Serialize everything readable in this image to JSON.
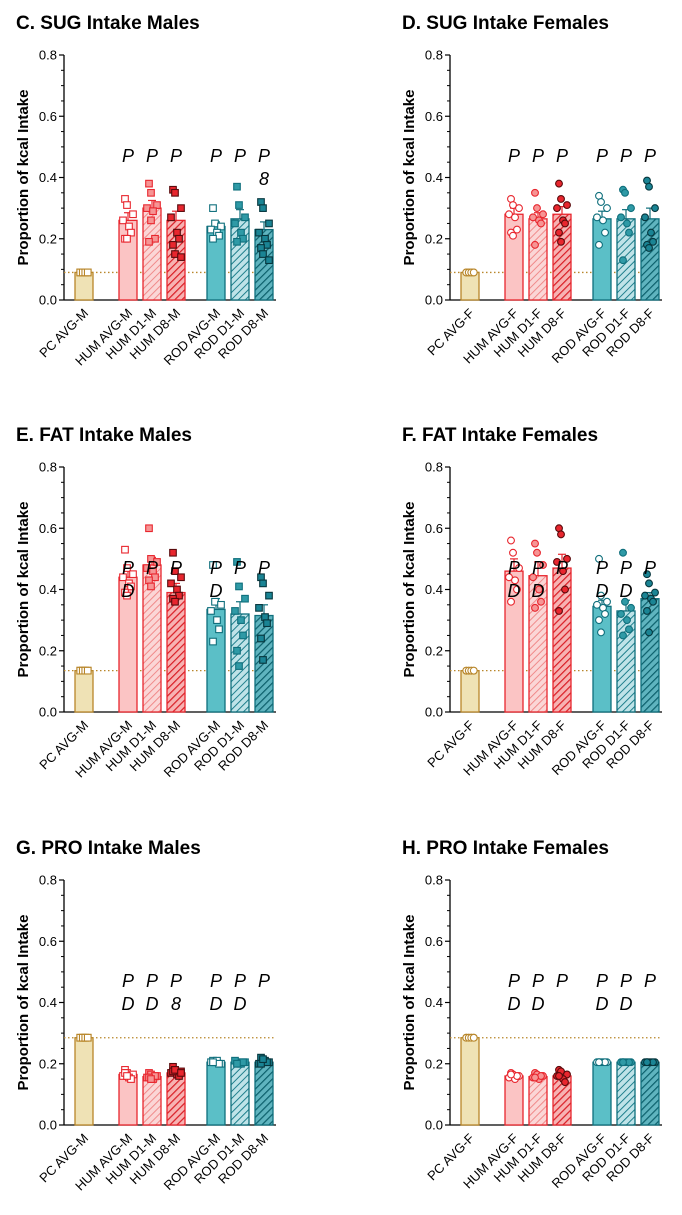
{
  "chart_data": [
    {
      "type": "bar",
      "title": "C. SUG Intake Males",
      "ylabel": "Proportion of kcal Intake",
      "ylim": [
        0,
        0.8
      ],
      "yticks": [
        "0.0",
        "0.2",
        "0.4",
        "0.6",
        "0.8"
      ],
      "categories": [
        "PC AVG-M",
        "HUM AVG-M",
        "HUM D1-M",
        "HUM D8-M",
        "ROD AVG-M",
        "ROD D1-M",
        "ROD D8-M"
      ],
      "values": [
        0.09,
        0.26,
        0.3,
        0.26,
        0.24,
        0.265,
        0.23
      ],
      "errors": [
        0.005,
        0.025,
        0.025,
        0.03,
        0.015,
        0.03,
        0.025
      ],
      "points": [
        [
          0.09,
          0.09,
          0.09,
          0.09,
          0.09,
          0.09,
          0.09,
          0.09
        ],
        [
          0.33,
          0.31,
          0.28,
          0.26,
          0.24,
          0.22,
          0.2,
          0.2
        ],
        [
          0.38,
          0.35,
          0.31,
          0.3,
          0.29,
          0.2,
          0.19,
          0.26
        ],
        [
          0.36,
          0.35,
          0.3,
          0.27,
          0.22,
          0.2,
          0.18,
          0.15,
          0.14
        ],
        [
          0.3,
          0.25,
          0.24,
          0.23,
          0.22,
          0.21,
          0.2
        ],
        [
          0.37,
          0.31,
          0.27,
          0.25,
          0.22,
          0.2,
          0.19
        ],
        [
          0.32,
          0.3,
          0.25,
          0.22,
          0.2,
          0.18,
          0.17,
          0.15,
          0.13
        ]
      ],
      "reference_line": 0.09,
      "annotations": [
        [],
        [
          "P"
        ],
        [
          "P"
        ],
        [
          "P"
        ],
        [
          "P"
        ],
        [
          "P"
        ],
        [
          "P",
          "8"
        ]
      ]
    },
    {
      "type": "bar",
      "title": "D. SUG Intake Females",
      "ylabel": "Proportion of kcal Intake",
      "ylim": [
        0,
        0.8
      ],
      "yticks": [
        "0.0",
        "0.2",
        "0.4",
        "0.6",
        "0.8"
      ],
      "categories": [
        "PC AVG-F",
        "HUM AVG-F",
        "HUM D1-F",
        "HUM D8-F",
        "ROD AVG-F",
        "ROD D1-F",
        "ROD D8-F"
      ],
      "values": [
        0.09,
        0.28,
        0.265,
        0.28,
        0.265,
        0.265,
        0.265
      ],
      "errors": [
        0.005,
        0.02,
        0.02,
        0.025,
        0.025,
        0.03,
        0.035
      ],
      "points": [
        [
          0.09,
          0.09,
          0.09,
          0.09,
          0.09,
          0.09,
          0.09,
          0.09
        ],
        [
          0.33,
          0.31,
          0.3,
          0.28,
          0.27,
          0.23,
          0.22,
          0.21
        ],
        [
          0.35,
          0.3,
          0.28,
          0.27,
          0.26,
          0.25,
          0.18
        ],
        [
          0.38,
          0.33,
          0.31,
          0.3,
          0.26,
          0.25,
          0.22,
          0.19
        ],
        [
          0.34,
          0.32,
          0.3,
          0.27,
          0.26,
          0.22,
          0.18
        ],
        [
          0.36,
          0.35,
          0.3,
          0.27,
          0.25,
          0.22,
          0.13
        ],
        [
          0.39,
          0.37,
          0.3,
          0.27,
          0.22,
          0.19,
          0.18,
          0.17
        ]
      ],
      "reference_line": 0.09,
      "annotations": [
        [],
        [
          "P"
        ],
        [
          "P"
        ],
        [
          "P"
        ],
        [
          "P"
        ],
        [
          "P"
        ],
        [
          "P"
        ]
      ]
    },
    {
      "type": "bar",
      "title": "E. FAT Intake Males",
      "ylabel": "Proportion of kcal Intake",
      "ylim": [
        0,
        0.8
      ],
      "yticks": [
        "0.0",
        "0.2",
        "0.4",
        "0.6",
        "0.8"
      ],
      "categories": [
        "PC AVG-M",
        "HUM AVG-M",
        "HUM D1-M",
        "HUM D8-M",
        "ROD AVG-M",
        "ROD D1-M",
        "ROD D8-M"
      ],
      "values": [
        0.135,
        0.44,
        0.48,
        0.39,
        0.335,
        0.32,
        0.315
      ],
      "errors": [
        0.005,
        0.03,
        0.025,
        0.03,
        0.035,
        0.04,
        0.035
      ],
      "points": [
        [
          0.135,
          0.135,
          0.135,
          0.135,
          0.135,
          0.135,
          0.135,
          0.135
        ],
        [
          0.53,
          0.47,
          0.45,
          0.44,
          0.42,
          0.41,
          0.39,
          0.38
        ],
        [
          0.6,
          0.5,
          0.49,
          0.47,
          0.46,
          0.44,
          0.43,
          0.41
        ],
        [
          0.52,
          0.46,
          0.44,
          0.42,
          0.4,
          0.38,
          0.37,
          0.36
        ],
        [
          0.48,
          0.36,
          0.35,
          0.33,
          0.3,
          0.27,
          0.23
        ],
        [
          0.49,
          0.41,
          0.37,
          0.33,
          0.3,
          0.25,
          0.2,
          0.15
        ],
        [
          0.44,
          0.42,
          0.38,
          0.34,
          0.31,
          0.29,
          0.24,
          0.17
        ]
      ],
      "reference_line": 0.135,
      "annotations": [
        [],
        [
          "P",
          "D"
        ],
        [
          "P"
        ],
        [
          "P"
        ],
        [
          "P",
          "D"
        ],
        [
          "P"
        ],
        [
          "P"
        ]
      ]
    },
    {
      "type": "bar",
      "title": "F. FAT Intake Females",
      "ylabel": "Proportion of kcal Intake",
      "ylim": [
        0,
        0.8
      ],
      "yticks": [
        "0.0",
        "0.2",
        "0.4",
        "0.6",
        "0.8"
      ],
      "categories": [
        "PC AVG-F",
        "HUM AVG-F",
        "HUM D1-F",
        "HUM D8-F",
        "ROD AVG-F",
        "ROD D1-F",
        "ROD D8-F"
      ],
      "values": [
        0.135,
        0.46,
        0.445,
        0.47,
        0.345,
        0.33,
        0.37
      ],
      "errors": [
        0.005,
        0.04,
        0.045,
        0.045,
        0.02,
        0.035,
        0.02
      ],
      "points": [
        [
          0.135,
          0.135,
          0.135,
          0.135,
          0.135,
          0.135,
          0.135,
          0.135
        ],
        [
          0.56,
          0.52,
          0.47,
          0.44,
          0.43,
          0.4,
          0.36
        ],
        [
          0.55,
          0.52,
          0.48,
          0.44,
          0.4,
          0.36,
          0.34
        ],
        [
          0.6,
          0.58,
          0.5,
          0.49,
          0.46,
          0.4,
          0.33
        ],
        [
          0.5,
          0.38,
          0.36,
          0.35,
          0.34,
          0.32,
          0.3,
          0.26
        ],
        [
          0.52,
          0.36,
          0.34,
          0.32,
          0.3,
          0.27,
          0.25
        ],
        [
          0.45,
          0.42,
          0.39,
          0.38,
          0.37,
          0.36,
          0.33,
          0.26
        ]
      ],
      "reference_line": 0.135,
      "annotations": [
        [],
        [
          "P",
          "D"
        ],
        [
          "P",
          "D"
        ],
        [
          "P"
        ],
        [
          "P",
          "D"
        ],
        [
          "P",
          "D"
        ],
        [
          "P"
        ]
      ]
    },
    {
      "type": "bar",
      "title": "G. PRO Intake Males",
      "ylabel": "Proportion of kcal Intake",
      "ylim": [
        0,
        0.8
      ],
      "yticks": [
        "0.0",
        "0.2",
        "0.4",
        "0.6",
        "0.8"
      ],
      "categories": [
        "PC AVG-M",
        "HUM AVG-M",
        "HUM D1-M",
        "HUM D8-M",
        "ROD AVG-M",
        "ROD D1-M",
        "ROD D8-M"
      ],
      "values": [
        0.285,
        0.165,
        0.158,
        0.17,
        0.205,
        0.205,
        0.205
      ],
      "errors": [
        0.005,
        0.008,
        0.006,
        0.008,
        0.004,
        0.003,
        0.006
      ],
      "points": [
        [
          0.285,
          0.285,
          0.285,
          0.285,
          0.285,
          0.285,
          0.285,
          0.285
        ],
        [
          0.18,
          0.17,
          0.165,
          0.16,
          0.155,
          0.15,
          0.17,
          0.16
        ],
        [
          0.17,
          0.165,
          0.16,
          0.155,
          0.15,
          0.16,
          0.155,
          0.15
        ],
        [
          0.19,
          0.18,
          0.175,
          0.17,
          0.165,
          0.16,
          0.175,
          0.18,
          0.17
        ],
        [
          0.21,
          0.205,
          0.2,
          0.205,
          0.21,
          0.2,
          0.205
        ],
        [
          0.205,
          0.2,
          0.205,
          0.21,
          0.2,
          0.205,
          0.2
        ],
        [
          0.22,
          0.21,
          0.205,
          0.2,
          0.21,
          0.205,
          0.2,
          0.215
        ]
      ],
      "reference_line": 0.285,
      "annotations": [
        [],
        [
          "P",
          "D"
        ],
        [
          "P",
          "D"
        ],
        [
          "P",
          "8"
        ],
        [
          "P",
          "D"
        ],
        [
          "P",
          "D"
        ],
        [
          "P"
        ]
      ]
    },
    {
      "type": "bar",
      "title": "H. PRO Intake Females",
      "ylabel": "Proportion of kcal Intake",
      "ylim": [
        0,
        0.8
      ],
      "yticks": [
        "0.0",
        "0.2",
        "0.4",
        "0.6",
        "0.8"
      ],
      "categories": [
        "PC AVG-F",
        "HUM AVG-F",
        "HUM D1-F",
        "HUM D8-F",
        "ROD AVG-F",
        "ROD D1-F",
        "ROD D8-F"
      ],
      "values": [
        0.285,
        0.16,
        0.158,
        0.16,
        0.205,
        0.205,
        0.205
      ],
      "errors": [
        0.004,
        0.006,
        0.005,
        0.007,
        0.002,
        0.002,
        0.002
      ],
      "points": [
        [
          0.285,
          0.285,
          0.285,
          0.285,
          0.285,
          0.285,
          0.285,
          0.285
        ],
        [
          0.17,
          0.165,
          0.16,
          0.155,
          0.15,
          0.16,
          0.165
        ],
        [
          0.17,
          0.165,
          0.16,
          0.155,
          0.15,
          0.16,
          0.155
        ],
        [
          0.18,
          0.175,
          0.165,
          0.16,
          0.15,
          0.14,
          0.16
        ],
        [
          0.205,
          0.205,
          0.205,
          0.205,
          0.205,
          0.205,
          0.205
        ],
        [
          0.205,
          0.205,
          0.205,
          0.205,
          0.205,
          0.205,
          0.205
        ],
        [
          0.205,
          0.205,
          0.205,
          0.205,
          0.205,
          0.205,
          0.205
        ]
      ],
      "reference_line": 0.285,
      "annotations": [
        [],
        [
          "P",
          "D"
        ],
        [
          "P",
          "D"
        ],
        [
          "P"
        ],
        [
          "P",
          "D"
        ],
        [
          "P",
          "D"
        ],
        [
          "P"
        ]
      ]
    }
  ],
  "colors": {
    "pc_fill": "#efe2b5",
    "pc_edge": "#b8862a",
    "hum_avg_fill": "#fbc4c4",
    "hum_d1_fill": "#f69494",
    "hum_d8_fill": "#e8262e",
    "hum_edge": "#e8262e",
    "rod_avg_fill": "#5bbfc7",
    "rod_d1_fill": "#2f9aa6",
    "rod_d8_fill": "#1a8494",
    "rod_edge": "#0f6f7c",
    "reference_line": "#b8862a",
    "axis": "#000000"
  }
}
